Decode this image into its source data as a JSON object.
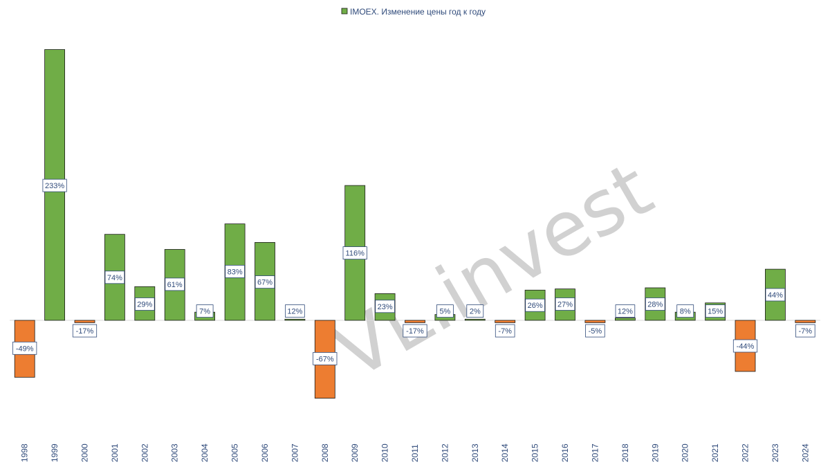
{
  "colors": {
    "positive": "#70ad47",
    "negative": "#ed7d31",
    "bar_stroke": "#1a1a1a",
    "label_border": "#2f4a7a",
    "text": "#2f4a7a",
    "watermark": "#9a9a9a"
  },
  "watermark": "VL.invest",
  "chart_data": {
    "type": "bar",
    "legend": {
      "label": "IMOEX. Изменение цены год к году",
      "position": "top-center"
    },
    "categories": [
      "1998",
      "1999",
      "2000",
      "2001",
      "2002",
      "2003",
      "2004",
      "2005",
      "2006",
      "2007",
      "2008",
      "2009",
      "2010",
      "2011",
      "2012",
      "2013",
      "2014",
      "2015",
      "2016",
      "2017",
      "2018",
      "2019",
      "2020",
      "2021",
      "2022",
      "2023",
      "2024"
    ],
    "values": [
      -49,
      233,
      -17,
      74,
      29,
      61,
      7,
      83,
      67,
      12,
      -67,
      116,
      23,
      -17,
      5,
      2,
      -7,
      26,
      27,
      -5,
      12,
      28,
      8,
      15,
      -44,
      44,
      -7
    ],
    "bar_heights": [
      -49,
      233,
      -2,
      74,
      29,
      61,
      7,
      83,
      67,
      1,
      -67,
      116,
      23,
      -2,
      5,
      1,
      -2,
      26,
      27,
      -2,
      2,
      28,
      7,
      15,
      -44,
      44,
      -2
    ],
    "data_labels": [
      "-49%",
      "233%",
      "-17%",
      "74%",
      "29%",
      "61%",
      "7%",
      "83%",
      "67%",
      "12%",
      "-67%",
      "116%",
      "23%",
      "-17%",
      "5%",
      "2%",
      "-7%",
      "26%",
      "27%",
      "-5%",
      "12%",
      "28%",
      "8%",
      "15%",
      "-44%",
      "44%",
      "-7%"
    ],
    "label_positions": [
      -24,
      116,
      -9,
      37,
      14,
      31,
      8,
      42,
      33,
      8,
      -33,
      58,
      12,
      -9,
      8,
      8,
      -9,
      13,
      14,
      -9,
      8,
      14,
      8,
      8,
      -22,
      22,
      -9
    ],
    "ylim": [
      -80,
      240
    ],
    "xlabel": "",
    "ylabel": "",
    "grid": false
  }
}
